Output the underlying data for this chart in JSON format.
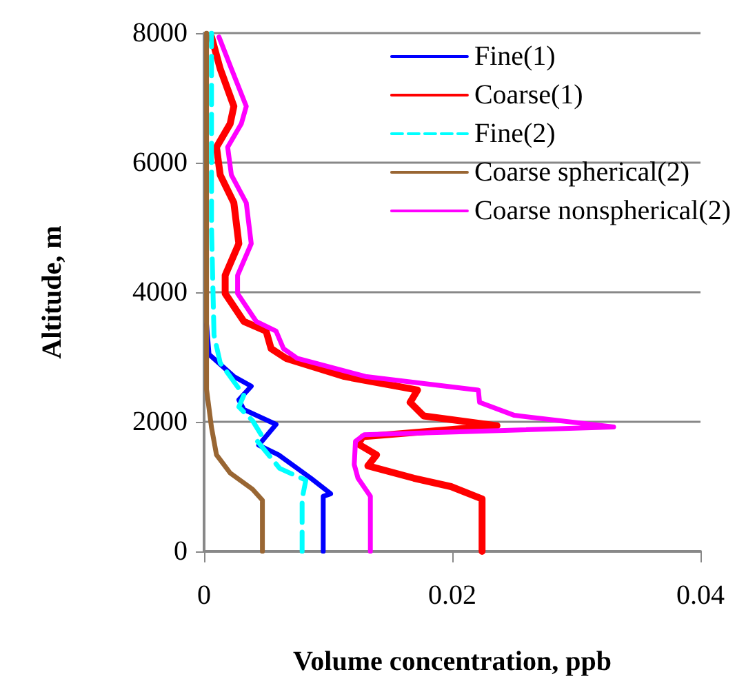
{
  "chart_data": {
    "type": "line",
    "xlabel": "Volume concentration, ppb",
    "ylabel": "Altitude, m",
    "xlim": [
      0,
      0.04
    ],
    "xticks": [
      0,
      0.02,
      0.04
    ],
    "ylim": [
      0,
      8000
    ],
    "yticks": [
      0,
      2000,
      4000,
      6000,
      8000
    ],
    "grid": "y",
    "legend": "top right",
    "marker": "none",
    "series": [
      {
        "name": "Fine(1)",
        "color": "#0000ff",
        "line_style": "solid",
        "x": [
          0.0096,
          0.0096,
          0.0102,
          0.0086,
          0.006,
          0.0044,
          0.0058,
          0.0032,
          0.0028,
          0.0038,
          0.0024,
          0.0004,
          0.0002
        ],
        "values": [
          0,
          850,
          890,
          1130,
          1490,
          1640,
          1960,
          2190,
          2340,
          2550,
          2700,
          3040,
          3500
        ]
      },
      {
        "name": "Coarse(1)",
        "color": "#ff0000",
        "line_style": "solid",
        "x": [
          0.0224,
          0.0224,
          0.0199,
          0.0169,
          0.0132,
          0.0139,
          0.0124,
          0.0128,
          0.0236,
          0.0177,
          0.0166,
          0.0172,
          0.0113,
          0.0066,
          0.0054,
          0.005,
          0.0032,
          0.0017,
          0.0017,
          0.0028,
          0.0024,
          0.0013,
          0.001,
          0.0021,
          0.0024,
          0.0013,
          0.0006
        ],
        "values": [
          0,
          810,
          1000,
          1130,
          1320,
          1490,
          1660,
          1770,
          1940,
          2090,
          2300,
          2490,
          2700,
          2980,
          3130,
          3400,
          3550,
          3980,
          4260,
          4750,
          5380,
          5810,
          6240,
          6600,
          6870,
          7450,
          7940
        ]
      },
      {
        "name": "Fine(2)",
        "color": "#00ffff",
        "line_style": "dashed",
        "x": [
          0.0079,
          0.0079,
          0.0082,
          0.0061,
          0.0043,
          0.0047,
          0.0039,
          0.0028,
          0.0032,
          0.0013,
          0.0008,
          0.0006,
          0.0006
        ],
        "values": [
          0,
          810,
          1100,
          1280,
          1700,
          1770,
          2020,
          2230,
          2410,
          2910,
          3340,
          5000,
          8000
        ]
      },
      {
        "name": "Coarse spherical(2)",
        "color": "#996633",
        "line_style": "solid",
        "x": [
          0.0047,
          0.0047,
          0.0039,
          0.0021,
          0.001,
          0.0006,
          0.0002,
          0.0002
        ],
        "values": [
          0,
          790,
          960,
          1210,
          1490,
          1910,
          2500,
          8000
        ]
      },
      {
        "name": "Coarse nonspherical(2)",
        "color": "#ff00ff",
        "line_style": "solid",
        "x": [
          0.0134,
          0.0134,
          0.0124,
          0.0121,
          0.0122,
          0.0129,
          0.033,
          0.025,
          0.0222,
          0.0221,
          0.013,
          0.0075,
          0.0064,
          0.0058,
          0.0042,
          0.0027,
          0.0027,
          0.0038,
          0.0034,
          0.0022,
          0.0019,
          0.003,
          0.0034,
          0.0022,
          0.0012
        ],
        "values": [
          0,
          850,
          1130,
          1340,
          1700,
          1800,
          1920,
          2100,
          2300,
          2490,
          2700,
          2980,
          3130,
          3400,
          3550,
          3980,
          4260,
          4750,
          5380,
          5810,
          6240,
          6600,
          6870,
          7450,
          7940
        ]
      }
    ]
  }
}
